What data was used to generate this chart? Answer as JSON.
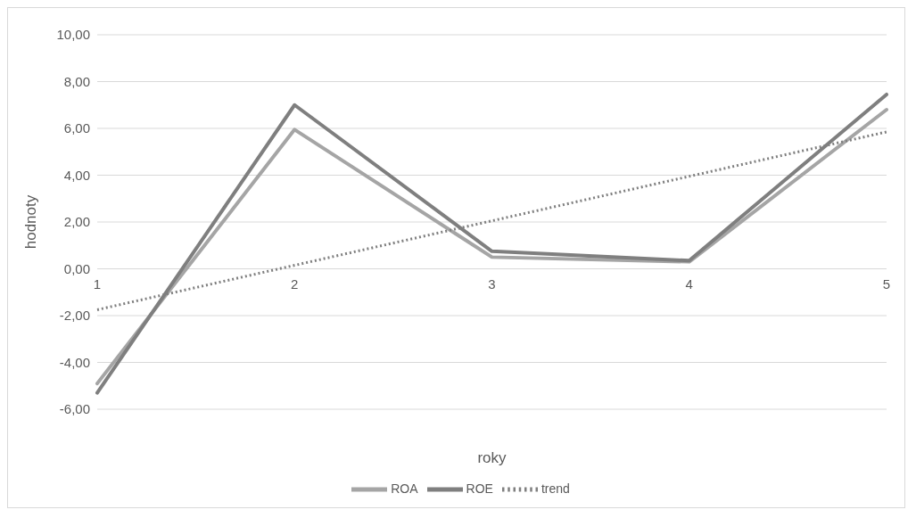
{
  "chart_data": {
    "type": "line",
    "xlabel": "roky",
    "ylabel": "hodnoty",
    "categories": [
      "1",
      "2",
      "3",
      "4",
      "5"
    ],
    "series": [
      {
        "name": "ROA",
        "color": "#a5a5a5",
        "values": [
          -4.9,
          5.95,
          0.5,
          0.3,
          6.8
        ]
      },
      {
        "name": "ROE",
        "color": "#7f7f7f",
        "values": [
          -5.3,
          7.0,
          0.75,
          0.35,
          7.45
        ]
      },
      {
        "name": "trend",
        "color": "#7f7f7f",
        "line_style": "dotted",
        "values": [
          -1.75,
          0.15,
          2.05,
          3.95,
          5.85
        ]
      }
    ],
    "ylim": [
      -6,
      10
    ],
    "yticks": [
      {
        "value": -6,
        "label": "-6,00"
      },
      {
        "value": -4,
        "label": "-4,00"
      },
      {
        "value": -2,
        "label": "-2,00"
      },
      {
        "value": 0,
        "label": "0,00"
      },
      {
        "value": 2,
        "label": "2,00"
      },
      {
        "value": 4,
        "label": "4,00"
      },
      {
        "value": 6,
        "label": "6,00"
      },
      {
        "value": 8,
        "label": "8,00"
      },
      {
        "value": 10,
        "label": "10,00"
      }
    ],
    "grid": "y",
    "legend": "bottom",
    "marker": "none",
    "line_style": "solid"
  }
}
